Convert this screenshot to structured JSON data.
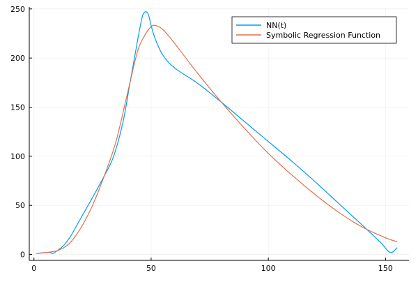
{
  "chart_data": {
    "type": "line",
    "title": "",
    "xlabel": "",
    "ylabel": "",
    "xlim": [
      -2,
      160
    ],
    "ylim": [
      -6,
      252
    ],
    "x_ticks": [
      0,
      50,
      100,
      150
    ],
    "y_ticks": [
      0,
      50,
      100,
      150,
      200,
      250
    ],
    "x_tick_labels": [
      "0",
      "50",
      "100",
      "150"
    ],
    "y_tick_labels": [
      "0",
      "50",
      "100",
      "150",
      "200",
      "250"
    ],
    "grid": true,
    "legend_position": "top-right",
    "series": [
      {
        "name": "NN(t)",
        "color": "#009AFA",
        "x": [
          1,
          5,
          7,
          8,
          10,
          13,
          16,
          20,
          25,
          30,
          34,
          38,
          41,
          44,
          46,
          47,
          48,
          49,
          50,
          52,
          55,
          60,
          70,
          80,
          90,
          100,
          110,
          120,
          130,
          140,
          148,
          152,
          155
        ],
        "y": [
          1,
          2,
          2,
          1,
          4,
          10,
          20,
          37,
          58,
          80,
          100,
          135,
          175,
          215,
          240,
          246,
          247,
          243,
          233,
          218,
          203,
          190,
          174,
          155,
          135,
          115,
          95,
          74,
          52,
          30,
          12,
          2,
          7
        ]
      },
      {
        "name": "Symbolic Regression Function",
        "color": "#E26F46",
        "x": [
          1,
          5,
          10,
          15,
          20,
          25,
          30,
          35,
          40,
          44,
          47,
          50,
          52,
          55,
          60,
          70,
          80,
          90,
          100,
          110,
          120,
          130,
          140,
          150,
          155
        ],
        "y": [
          1,
          2,
          4,
          11,
          27,
          50,
          80,
          115,
          165,
          205,
          222,
          232,
          233,
          229,
          215,
          184,
          155,
          128,
          103,
          81,
          61,
          43,
          28,
          17,
          13
        ]
      }
    ]
  }
}
